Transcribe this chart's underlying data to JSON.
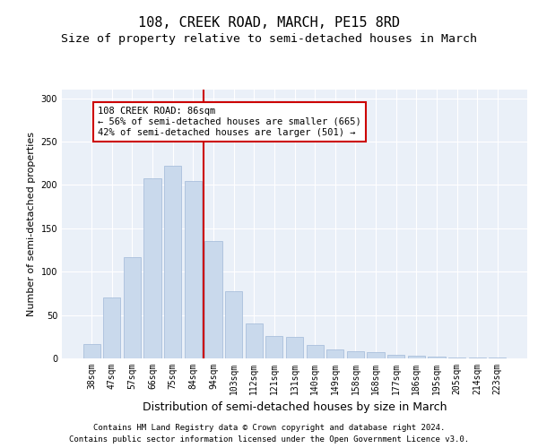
{
  "title": "108, CREEK ROAD, MARCH, PE15 8RD",
  "subtitle": "Size of property relative to semi-detached houses in March",
  "xlabel": "Distribution of semi-detached houses by size in March",
  "ylabel": "Number of semi-detached properties",
  "categories": [
    "38sqm",
    "47sqm",
    "57sqm",
    "66sqm",
    "75sqm",
    "84sqm",
    "94sqm",
    "103sqm",
    "112sqm",
    "121sqm",
    "131sqm",
    "140sqm",
    "149sqm",
    "158sqm",
    "168sqm",
    "177sqm",
    "186sqm",
    "195sqm",
    "205sqm",
    "214sqm",
    "223sqm"
  ],
  "values": [
    17,
    70,
    117,
    208,
    222,
    205,
    135,
    78,
    40,
    26,
    25,
    15,
    10,
    8,
    7,
    4,
    3,
    2,
    1,
    1,
    1
  ],
  "bar_color": "#c9d9ec",
  "bar_edgecolor": "#a0b8d8",
  "vline_index": 5,
  "vline_color": "#cc0000",
  "annotation_text": "108 CREEK ROAD: 86sqm\n← 56% of semi-detached houses are smaller (665)\n42% of semi-detached houses are larger (501) →",
  "annotation_box_facecolor": "#ffffff",
  "annotation_box_edgecolor": "#cc0000",
  "footer_line1": "Contains HM Land Registry data © Crown copyright and database right 2024.",
  "footer_line2": "Contains public sector information licensed under the Open Government Licence v3.0.",
  "ylim": [
    0,
    310
  ],
  "yticks": [
    0,
    50,
    100,
    150,
    200,
    250,
    300
  ],
  "bg_color": "#eaf0f8",
  "fig_bg_color": "#ffffff",
  "title_fontsize": 11,
  "subtitle_fontsize": 9.5,
  "tick_fontsize": 7,
  "ylabel_fontsize": 8,
  "xlabel_fontsize": 9,
  "annotation_fontsize": 7.5,
  "footer_fontsize": 6.5
}
